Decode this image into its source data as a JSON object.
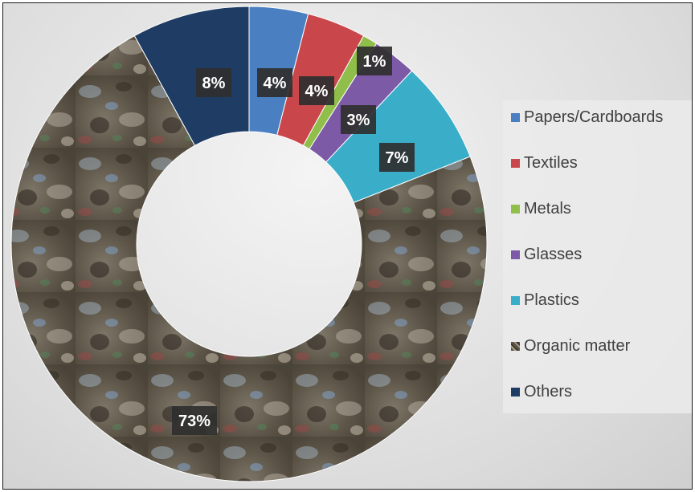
{
  "chart_data": {
    "type": "pie",
    "donut": true,
    "legend_position": "right",
    "slices": [
      {
        "label": "Papers/Cardboards",
        "value": 4,
        "display": "4%",
        "color": "#4a7fc1"
      },
      {
        "label": "Textiles",
        "value": 4,
        "display": "4%",
        "color": "#c9474a"
      },
      {
        "label": "Metals",
        "value": 1,
        "display": "1%",
        "color": "#8fbf4a"
      },
      {
        "label": "Glasses",
        "value": 3,
        "display": "3%",
        "color": "#7d5aa6"
      },
      {
        "label": "Plastics",
        "value": 7,
        "display": "7%",
        "color": "#3aaec8"
      },
      {
        "label": "Organic matter",
        "value": 73,
        "display": "73%",
        "color": "#6f6552",
        "pattern": "waste-photo"
      },
      {
        "label": "Others",
        "value": 8,
        "display": "8%",
        "color": "#1f3c64"
      }
    ]
  }
}
